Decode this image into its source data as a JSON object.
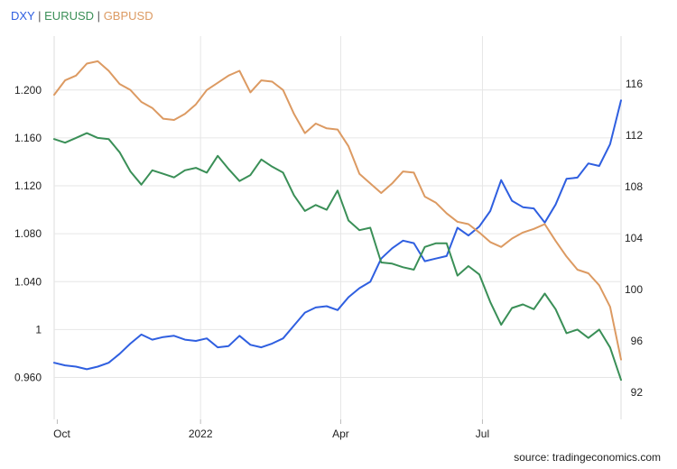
{
  "legend": {
    "dxy": "DXY",
    "eurusd": "EURUSD",
    "gbpusd": "GBPUSD",
    "separator": "|"
  },
  "source": "source: tradingeconomics.com",
  "chart_data": {
    "type": "line",
    "x_ticks": [
      "Oct",
      "2022",
      "Apr",
      "Jul"
    ],
    "y_left": {
      "ticks": [
        0.96,
        1.0,
        1.04,
        1.08,
        1.12,
        1.16,
        1.2
      ],
      "tick_labels": [
        "0.960",
        "1",
        "1.040",
        "1.080",
        "1.120",
        "1.160",
        "1.200"
      ],
      "range": [
        0.925,
        1.245
      ]
    },
    "y_right": {
      "ticks": [
        92,
        96,
        100,
        104,
        108,
        112,
        116
      ],
      "tick_labels": [
        "92",
        "96",
        "100",
        "104",
        "108",
        "112",
        "116"
      ],
      "range": [
        89.9,
        119.7
      ]
    },
    "x_range": [
      "2021-09-29",
      "2022-09-28"
    ],
    "grid": true,
    "series": [
      {
        "name": "DXY",
        "axis": "right",
        "color": "#2f5fe0",
        "points": [
          [
            "2021-09-29",
            94.3
          ],
          [
            "2021-10-06",
            94.1
          ],
          [
            "2021-10-13",
            94.0
          ],
          [
            "2021-10-20",
            93.8
          ],
          [
            "2021-10-27",
            94.0
          ],
          [
            "2021-11-03",
            94.3
          ],
          [
            "2021-11-10",
            95.0
          ],
          [
            "2021-11-17",
            95.8
          ],
          [
            "2021-11-24",
            96.5
          ],
          [
            "2021-12-01",
            96.1
          ],
          [
            "2021-12-08",
            96.3
          ],
          [
            "2021-12-15",
            96.4
          ],
          [
            "2021-12-22",
            96.1
          ],
          [
            "2021-12-29",
            96.0
          ],
          [
            "2022-01-05",
            96.2
          ],
          [
            "2022-01-12",
            95.5
          ],
          [
            "2022-01-19",
            95.6
          ],
          [
            "2022-01-26",
            96.4
          ],
          [
            "2022-02-02",
            95.7
          ],
          [
            "2022-02-09",
            95.5
          ],
          [
            "2022-02-16",
            95.8
          ],
          [
            "2022-02-23",
            96.2
          ],
          [
            "2022-03-02",
            97.2
          ],
          [
            "2022-03-09",
            98.2
          ],
          [
            "2022-03-16",
            98.6
          ],
          [
            "2022-03-23",
            98.7
          ],
          [
            "2022-03-30",
            98.4
          ],
          [
            "2022-04-06",
            99.4
          ],
          [
            "2022-04-13",
            100.1
          ],
          [
            "2022-04-20",
            100.6
          ],
          [
            "2022-04-27",
            102.4
          ],
          [
            "2022-05-04",
            103.2
          ],
          [
            "2022-05-11",
            103.8
          ],
          [
            "2022-05-18",
            103.6
          ],
          [
            "2022-05-25",
            102.2
          ],
          [
            "2022-06-01",
            102.4
          ],
          [
            "2022-06-08",
            102.6
          ],
          [
            "2022-06-15",
            104.8
          ],
          [
            "2022-06-22",
            104.2
          ],
          [
            "2022-06-29",
            104.9
          ],
          [
            "2022-07-06",
            106.1
          ],
          [
            "2022-07-13",
            108.5
          ],
          [
            "2022-07-20",
            106.9
          ],
          [
            "2022-07-27",
            106.4
          ],
          [
            "2022-08-03",
            106.3
          ],
          [
            "2022-08-10",
            105.2
          ],
          [
            "2022-08-17",
            106.6
          ],
          [
            "2022-08-24",
            108.6
          ],
          [
            "2022-08-31",
            108.7
          ],
          [
            "2022-09-07",
            109.8
          ],
          [
            "2022-09-14",
            109.6
          ],
          [
            "2022-09-21",
            111.3
          ],
          [
            "2022-09-28",
            114.7
          ]
        ]
      },
      {
        "name": "EURUSD",
        "axis": "left",
        "color": "#3a8f57",
        "points": [
          [
            "2021-09-29",
            1.159
          ],
          [
            "2021-10-06",
            1.156
          ],
          [
            "2021-10-13",
            1.16
          ],
          [
            "2021-10-20",
            1.164
          ],
          [
            "2021-10-27",
            1.16
          ],
          [
            "2021-11-03",
            1.159
          ],
          [
            "2021-11-10",
            1.148
          ],
          [
            "2021-11-17",
            1.132
          ],
          [
            "2021-11-24",
            1.121
          ],
          [
            "2021-12-01",
            1.133
          ],
          [
            "2021-12-08",
            1.13
          ],
          [
            "2021-12-15",
            1.127
          ],
          [
            "2021-12-22",
            1.133
          ],
          [
            "2021-12-29",
            1.135
          ],
          [
            "2022-01-05",
            1.131
          ],
          [
            "2022-01-12",
            1.145
          ],
          [
            "2022-01-19",
            1.134
          ],
          [
            "2022-01-26",
            1.124
          ],
          [
            "2022-02-02",
            1.129
          ],
          [
            "2022-02-09",
            1.142
          ],
          [
            "2022-02-16",
            1.136
          ],
          [
            "2022-02-23",
            1.131
          ],
          [
            "2022-03-02",
            1.112
          ],
          [
            "2022-03-09",
            1.099
          ],
          [
            "2022-03-16",
            1.104
          ],
          [
            "2022-03-23",
            1.1
          ],
          [
            "2022-03-30",
            1.116
          ],
          [
            "2022-04-06",
            1.091
          ],
          [
            "2022-04-13",
            1.083
          ],
          [
            "2022-04-20",
            1.085
          ],
          [
            "2022-04-27",
            1.056
          ],
          [
            "2022-05-04",
            1.055
          ],
          [
            "2022-05-11",
            1.052
          ],
          [
            "2022-05-18",
            1.05
          ],
          [
            "2022-05-25",
            1.069
          ],
          [
            "2022-06-01",
            1.072
          ],
          [
            "2022-06-08",
            1.072
          ],
          [
            "2022-06-15",
            1.045
          ],
          [
            "2022-06-22",
            1.053
          ],
          [
            "2022-06-29",
            1.046
          ],
          [
            "2022-07-06",
            1.023
          ],
          [
            "2022-07-13",
            1.004
          ],
          [
            "2022-07-20",
            1.018
          ],
          [
            "2022-07-27",
            1.021
          ],
          [
            "2022-08-03",
            1.017
          ],
          [
            "2022-08-10",
            1.03
          ],
          [
            "2022-08-17",
            1.017
          ],
          [
            "2022-08-24",
            0.997
          ],
          [
            "2022-08-31",
            1.0
          ],
          [
            "2022-09-07",
            0.993
          ],
          [
            "2022-09-14",
            1.0
          ],
          [
            "2022-09-21",
            0.985
          ],
          [
            "2022-09-28",
            0.958
          ]
        ]
      },
      {
        "name": "GBPUSD",
        "axis": "left",
        "color": "#dc9a62",
        "points": [
          [
            "2021-09-29",
            1.196
          ],
          [
            "2021-10-06",
            1.208
          ],
          [
            "2021-10-13",
            1.212
          ],
          [
            "2021-10-20",
            1.222
          ],
          [
            "2021-10-27",
            1.224
          ],
          [
            "2021-11-03",
            1.216
          ],
          [
            "2021-11-10",
            1.205
          ],
          [
            "2021-11-17",
            1.2
          ],
          [
            "2021-11-24",
            1.19
          ],
          [
            "2021-12-01",
            1.185
          ],
          [
            "2021-12-08",
            1.176
          ],
          [
            "2021-12-15",
            1.175
          ],
          [
            "2021-12-22",
            1.18
          ],
          [
            "2021-12-29",
            1.188
          ],
          [
            "2022-01-05",
            1.2
          ],
          [
            "2022-01-12",
            1.206
          ],
          [
            "2022-01-19",
            1.212
          ],
          [
            "2022-01-26",
            1.216
          ],
          [
            "2022-02-02",
            1.198
          ],
          [
            "2022-02-09",
            1.208
          ],
          [
            "2022-02-16",
            1.207
          ],
          [
            "2022-02-23",
            1.2
          ],
          [
            "2022-03-02",
            1.18
          ],
          [
            "2022-03-09",
            1.164
          ],
          [
            "2022-03-16",
            1.172
          ],
          [
            "2022-03-23",
            1.168
          ],
          [
            "2022-03-30",
            1.167
          ],
          [
            "2022-04-06",
            1.153
          ],
          [
            "2022-04-13",
            1.13
          ],
          [
            "2022-04-20",
            1.122
          ],
          [
            "2022-04-27",
            1.114
          ],
          [
            "2022-05-04",
            1.122
          ],
          [
            "2022-05-11",
            1.132
          ],
          [
            "2022-05-18",
            1.131
          ],
          [
            "2022-05-25",
            1.111
          ],
          [
            "2022-06-01",
            1.106
          ],
          [
            "2022-06-08",
            1.097
          ],
          [
            "2022-06-15",
            1.09
          ],
          [
            "2022-06-22",
            1.088
          ],
          [
            "2022-06-29",
            1.081
          ],
          [
            "2022-07-06",
            1.073
          ],
          [
            "2022-07-13",
            1.069
          ],
          [
            "2022-07-20",
            1.076
          ],
          [
            "2022-07-27",
            1.081
          ],
          [
            "2022-08-03",
            1.084
          ],
          [
            "2022-08-10",
            1.088
          ],
          [
            "2022-08-17",
            1.074
          ],
          [
            "2022-08-24",
            1.061
          ],
          [
            "2022-08-31",
            1.05
          ],
          [
            "2022-09-07",
            1.047
          ],
          [
            "2022-09-14",
            1.037
          ],
          [
            "2022-09-21",
            1.019
          ],
          [
            "2022-09-28",
            0.975
          ]
        ]
      }
    ]
  }
}
